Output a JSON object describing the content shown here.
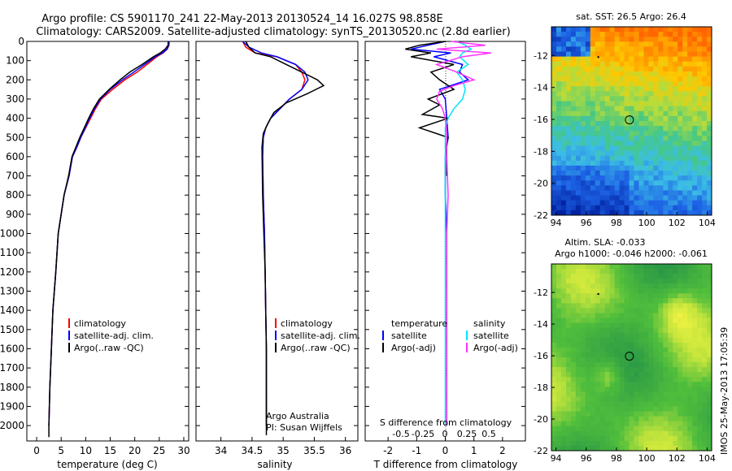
{
  "header": {
    "line1": "Argo profile: CS 5901170_241 22-May-2013 20130524_14 16.027S 98.858E",
    "line2": "Climatology: CARS2009. Satellite-adjusted climatology: synTS_20130520.nc (2.8d earlier)"
  },
  "colors": {
    "climatology": "#ff0000",
    "satellite": "#0000ff",
    "argo": "#000000",
    "satellite_s": "#00e5ff",
    "argo_s": "#ff33ff"
  },
  "chart_data": [
    {
      "type": "line",
      "xlabel": "temperature (deg C)",
      "ylabel": "",
      "xlim": [
        -2,
        31
      ],
      "ylim": [
        2080,
        0
      ],
      "xticks": [
        0,
        5,
        10,
        15,
        20,
        25,
        30
      ],
      "yticks": [
        0,
        100,
        200,
        300,
        400,
        500,
        600,
        700,
        800,
        900,
        1000,
        1100,
        1200,
        1300,
        1400,
        1500,
        1600,
        1700,
        1800,
        1900,
        2000
      ],
      "legend": [
        "climatology",
        "satellite-adj. clim.",
        "Argo(..raw -QC)"
      ],
      "series": [
        {
          "name": "climatology",
          "x": [
            27.0,
            27.0,
            26.6,
            25.8,
            24.5,
            22.5,
            20.5,
            18.0,
            15.5,
            13.2,
            12.0,
            11.0,
            10.0,
            9.0,
            8.2,
            7.3,
            6.6,
            5.6,
            5.0,
            4.4,
            3.9,
            3.3,
            3.0,
            2.7,
            2.5
          ],
          "y": [
            0,
            20,
            40,
            60,
            80,
            120,
            160,
            200,
            250,
            300,
            350,
            400,
            450,
            500,
            550,
            600,
            700,
            800,
            900,
            1000,
            1200,
            1400,
            1600,
            1800,
            2000
          ]
        },
        {
          "name": "satellite-adj. clim.",
          "x": [
            27.0,
            26.9,
            26.6,
            25.6,
            24.2,
            22.0,
            19.8,
            17.5,
            15.0,
            13.0,
            11.8,
            10.8,
            9.9,
            9.0,
            8.2,
            7.3,
            6.6,
            5.6,
            5.0,
            4.4,
            3.9,
            3.3,
            3.0,
            2.7,
            2.5
          ],
          "y": [
            0,
            20,
            40,
            60,
            80,
            120,
            160,
            200,
            250,
            300,
            350,
            400,
            450,
            500,
            550,
            600,
            700,
            800,
            900,
            1000,
            1200,
            1400,
            1600,
            1800,
            2000
          ]
        },
        {
          "name": "Argo(..raw -QC)",
          "x": [
            26.8,
            26.8,
            26.2,
            25.2,
            23.8,
            21.5,
            19.0,
            17.0,
            14.8,
            12.8,
            11.6,
            10.6,
            9.7,
            8.8,
            8.0,
            7.2,
            6.5,
            5.6,
            5.0,
            4.4,
            3.9,
            3.3,
            3.0,
            2.7,
            2.5,
            2.5
          ],
          "y": [
            0,
            20,
            40,
            60,
            80,
            120,
            160,
            200,
            250,
            300,
            350,
            400,
            450,
            500,
            550,
            600,
            700,
            800,
            900,
            1000,
            1200,
            1400,
            1600,
            1800,
            2000,
            2060
          ]
        }
      ]
    },
    {
      "type": "line",
      "xlabel": "salinity",
      "xlim": [
        33.6,
        36.2
      ],
      "ylim": [
        2080,
        0
      ],
      "xticks": [
        34,
        34.5,
        35,
        35.5,
        36
      ],
      "legend": [
        "climatology",
        "satellite-adj. clim.",
        "Argo(..raw -QC)"
      ],
      "annotations": [
        "Argo Australia",
        "PI: Susan Wijffels"
      ],
      "series": [
        {
          "name": "climatology",
          "x": [
            34.35,
            34.4,
            34.55,
            34.9,
            35.2,
            35.3,
            35.35,
            35.3,
            35.1,
            34.95,
            34.8,
            34.72,
            34.68,
            34.67,
            34.68,
            34.7,
            34.71,
            34.72,
            34.73,
            34.73,
            34.73
          ],
          "y": [
            0,
            30,
            60,
            80,
            120,
            160,
            200,
            250,
            300,
            350,
            400,
            450,
            500,
            600,
            800,
            1000,
            1200,
            1400,
            1600,
            1800,
            2000
          ]
        },
        {
          "name": "satellite-adj. clim.",
          "x": [
            34.35,
            34.45,
            34.65,
            34.9,
            35.2,
            35.35,
            35.4,
            35.3,
            35.1,
            34.95,
            34.8,
            34.72,
            34.68,
            34.67,
            34.68,
            34.7,
            34.71,
            34.72,
            34.73,
            34.73,
            34.73
          ],
          "y": [
            0,
            30,
            60,
            80,
            120,
            160,
            200,
            250,
            300,
            350,
            400,
            450,
            500,
            600,
            800,
            1000,
            1200,
            1400,
            1600,
            1800,
            2000
          ]
        },
        {
          "name": "Argo(..raw -QC)",
          "x": [
            34.4,
            34.45,
            34.55,
            34.8,
            35.05,
            35.3,
            35.55,
            35.65,
            35.4,
            35.05,
            34.85,
            34.75,
            34.68,
            34.66,
            34.67,
            34.69,
            34.71,
            34.72,
            34.73,
            34.73,
            34.73
          ],
          "y": [
            0,
            30,
            60,
            80,
            120,
            160,
            200,
            230,
            270,
            320,
            370,
            430,
            480,
            550,
            800,
            1000,
            1200,
            1400,
            1600,
            1800,
            2050
          ]
        }
      ]
    },
    {
      "type": "line",
      "xlabel": "T difference from climatology",
      "xlim": [
        -2.8,
        2.8
      ],
      "ylim": [
        2080,
        0
      ],
      "xticks": [
        -2,
        -1,
        0,
        1,
        2
      ],
      "top_xlabel": "S difference from climatology",
      "top_xticks": [
        "-0.5",
        "-0.25",
        "0",
        "0.25",
        "0.5"
      ],
      "legend_groups": [
        {
          "title": "temperature",
          "items": [
            "satellite",
            "Argo(-adj)"
          ]
        },
        {
          "title": "salinity",
          "items": [
            "satellite",
            "Argo(-adj)"
          ]
        }
      ],
      "series": [
        {
          "name": "temperature satellite",
          "x": [
            0,
            -0.6,
            -1.2,
            0.2,
            -0.4,
            0.6,
            0.5,
            0.8,
            -0.2,
            0,
            0.05,
            0.1,
            0,
            0,
            0.05,
            0.05,
            0.05,
            0.05,
            0.05
          ],
          "y": [
            0,
            20,
            40,
            60,
            80,
            120,
            160,
            200,
            250,
            300,
            400,
            500,
            600,
            800,
            1000,
            1200,
            1400,
            1600,
            2000
          ]
        },
        {
          "name": "temperature Argo(-adj)",
          "x": [
            0,
            -0.9,
            -1.4,
            -0.5,
            -1.2,
            0.3,
            -0.5,
            -0.2,
            0.3,
            -0.6,
            -0.2,
            -0.8,
            0.1,
            -0.9,
            -0.3,
            0.1,
            0,
            0.05,
            0.05
          ],
          "y": [
            0,
            20,
            40,
            60,
            80,
            120,
            160,
            200,
            250,
            300,
            330,
            380,
            400,
            450,
            480,
            500,
            550,
            600,
            700
          ]
        },
        {
          "name": "salinity satellite",
          "x": [
            0.4,
            0.7,
            0.9,
            0.6,
            0.5,
            0.8,
            0.4,
            0.6,
            0.7,
            0.6,
            0.3,
            0.1,
            0,
            0,
            0,
            0,
            0,
            0,
            0
          ],
          "y": [
            0,
            20,
            40,
            60,
            80,
            120,
            160,
            200,
            250,
            300,
            350,
            400,
            450,
            500,
            700,
            900,
            1200,
            1600,
            2000
          ]
        },
        {
          "name": "salinity Argo(-adj)",
          "x": [
            0.2,
            1.4,
            -0.3,
            1.6,
            0.6,
            -0.3,
            0.4,
            1.0,
            0.3,
            -0.2,
            -0.3,
            -0.1,
            0,
            0.05,
            0.05,
            0.1,
            0.05,
            0.05,
            0.05
          ],
          "y": [
            0,
            20,
            40,
            60,
            80,
            120,
            160,
            200,
            230,
            260,
            300,
            350,
            400,
            500,
            600,
            800,
            1000,
            1400,
            2000
          ]
        }
      ]
    },
    {
      "type": "heatmap",
      "title": "sat. SST: 26.5  Argo: 26.4",
      "xlim": [
        93.7,
        104.3
      ],
      "ylim": [
        -22,
        -10.2
      ],
      "xticks": [
        "94",
        "96",
        "98",
        "100",
        "102",
        "104"
      ],
      "yticks": [
        "-12",
        "-14",
        "-16",
        "-18",
        "-20",
        "-22"
      ],
      "marker": {
        "x": 98.858,
        "y": -16.027
      }
    },
    {
      "type": "heatmap",
      "title": "Altim. SLA: -0.033",
      "subtitle": "Argo h1000: -0.046 h2000: -0.061",
      "xlim": [
        93.7,
        104.3
      ],
      "ylim": [
        -22,
        -10.2
      ],
      "xticks": [
        "94",
        "96",
        "98",
        "100",
        "102",
        "104"
      ],
      "yticks": [
        "-12",
        "-14",
        "-16",
        "-18",
        "-20",
        "-22"
      ],
      "marker": {
        "x": 98.858,
        "y": -16.027
      }
    }
  ],
  "footer": {
    "stamp": "IMOS 25-May-2013 17:05:39"
  }
}
